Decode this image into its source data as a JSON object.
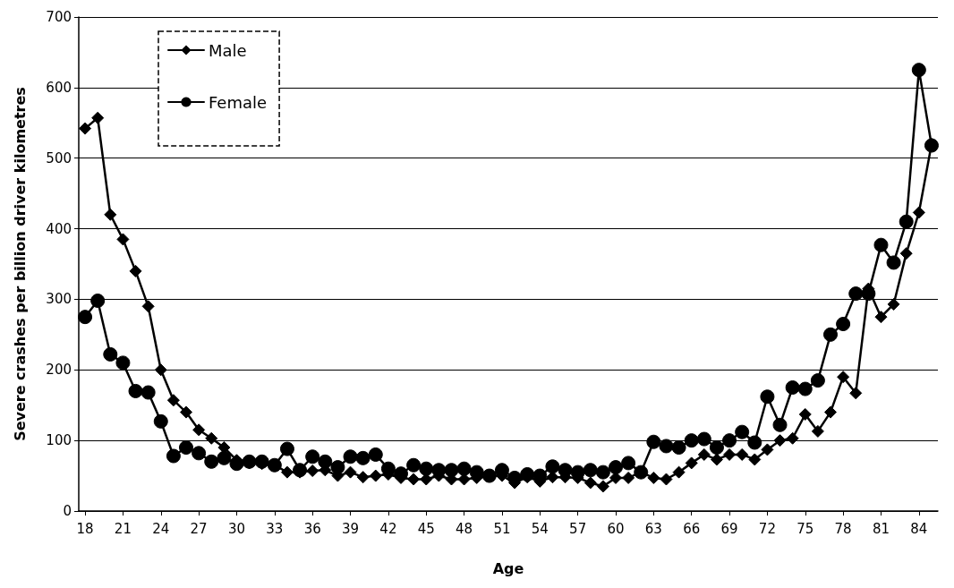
{
  "chart_data": {
    "type": "line",
    "xlabel": "Age",
    "ylabel": "Severe crashes per billion driver kilometres",
    "categories": [
      "18",
      null,
      null,
      "21",
      null,
      null,
      "24",
      null,
      null,
      "27",
      null,
      null,
      "30",
      null,
      null,
      "33",
      null,
      null,
      "36",
      null,
      null,
      "39",
      null,
      null,
      "42",
      null,
      null,
      "45",
      null,
      null,
      "48",
      null,
      null,
      "51",
      null,
      null,
      "54",
      null,
      null,
      "57",
      null,
      null,
      "60",
      null,
      null,
      "63",
      null,
      null,
      "66",
      null,
      null,
      "69",
      null,
      null,
      "72",
      null,
      null,
      "75",
      null,
      null,
      "78",
      null,
      null,
      "81",
      null,
      null,
      "84",
      null
    ],
    "series": [
      {
        "name": "Male",
        "color": "#000000",
        "marker": "diamond",
        "values": [
          542,
          557,
          420,
          385,
          340,
          290,
          200,
          157,
          140,
          115,
          103,
          90,
          72,
          68,
          67,
          65,
          55,
          55,
          57,
          58,
          50,
          55,
          48,
          50,
          52,
          47,
          45,
          45,
          50,
          45,
          45,
          47,
          50,
          50,
          40,
          48,
          42,
          48,
          48,
          47,
          40,
          35,
          47,
          47,
          55,
          47,
          45,
          55,
          68,
          80,
          73,
          80,
          80,
          73,
          87,
          100,
          103,
          137,
          113,
          140,
          190,
          167,
          315,
          275,
          293,
          365,
          423,
          520
        ]
      },
      {
        "name": "Female",
        "color": "#000000",
        "marker": "circle",
        "values": [
          275,
          298,
          222,
          210,
          170,
          168,
          127,
          78,
          90,
          82,
          70,
          75,
          67,
          70,
          70,
          65,
          88,
          58,
          77,
          70,
          62,
          77,
          75,
          80,
          60,
          53,
          65,
          60,
          58,
          58,
          60,
          55,
          50,
          58,
          47,
          52,
          50,
          63,
          58,
          55,
          58,
          55,
          62,
          68,
          55,
          98,
          92,
          90,
          100,
          102,
          90,
          100,
          112,
          97,
          162,
          122,
          175,
          173,
          185,
          250,
          265,
          308,
          308,
          377,
          352,
          410,
          625,
          518
        ]
      }
    ],
    "ylim": [
      0,
      700
    ],
    "yticks": [
      0,
      100,
      200,
      300,
      400,
      500,
      600,
      700
    ],
    "grid": "y",
    "legend": "top left",
    "line_style": "solid"
  }
}
